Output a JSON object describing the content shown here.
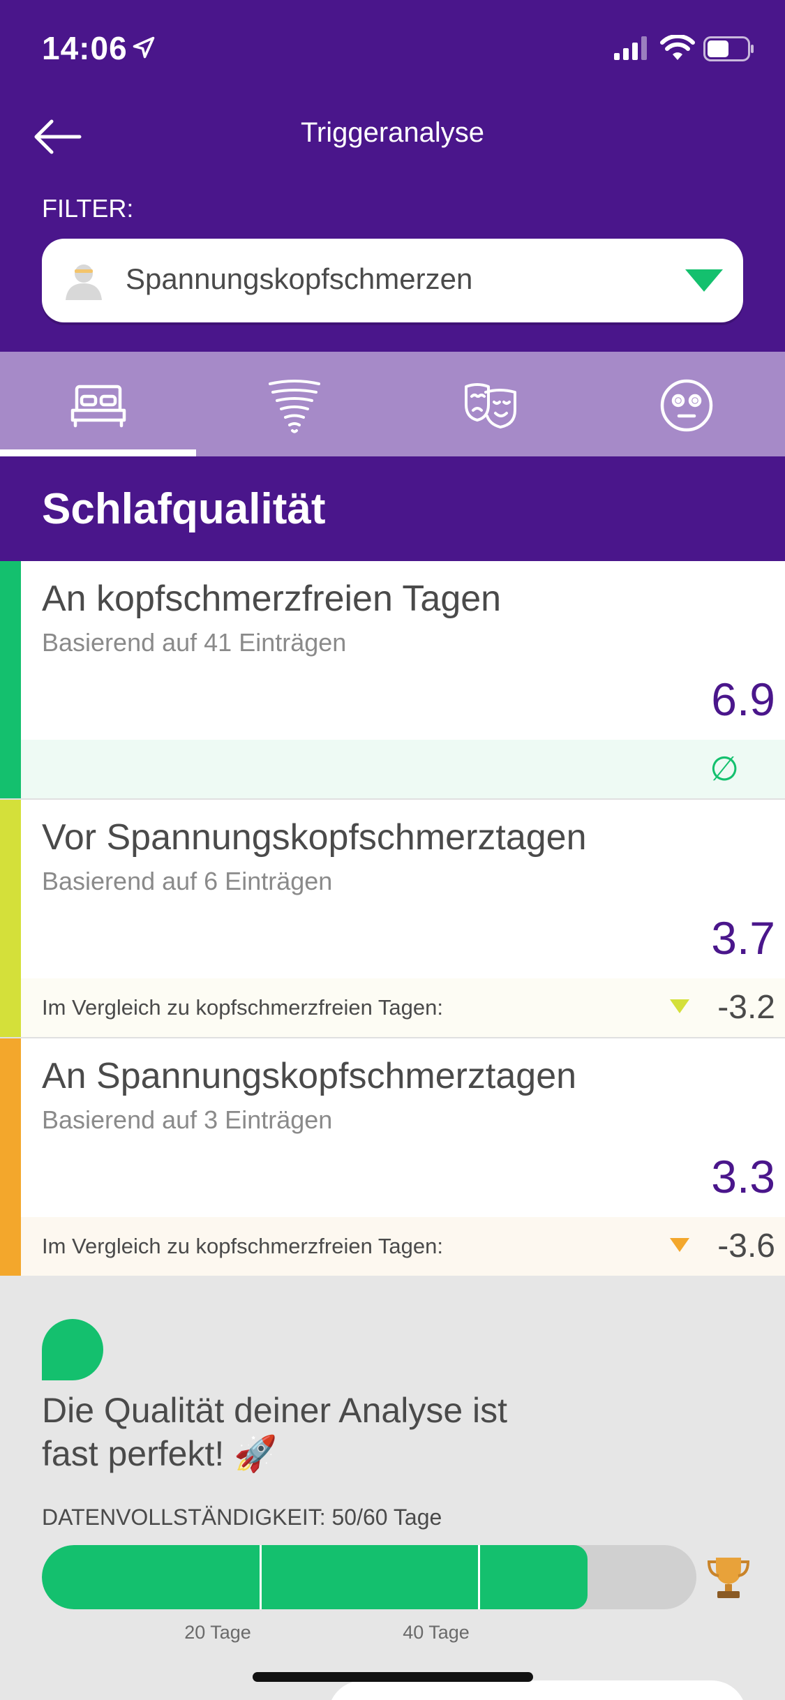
{
  "status_bar": {
    "time": "14:06"
  },
  "nav": {
    "title": "Triggeranalyse"
  },
  "filter": {
    "label": "FILTER:",
    "value": "Spannungskopfschmerzen",
    "accent_color": "#14c06e"
  },
  "tabs": [
    {
      "icon": "bed-icon",
      "selected": true
    },
    {
      "icon": "tornado-icon",
      "selected": false
    },
    {
      "icon": "theater-masks-icon",
      "selected": false
    },
    {
      "icon": "face-icon",
      "selected": false
    }
  ],
  "section": {
    "title": "Schlafqualität"
  },
  "cards": [
    {
      "title": "An kopfschmerzfreien Tagen",
      "subtitle": "Basierend auf 41 Einträgen",
      "value": "6.9",
      "footer_symbol": "∅",
      "color": "#14c06e"
    },
    {
      "title": "Vor Spannungskopfschmerztagen",
      "subtitle": "Basierend auf 6 Einträgen",
      "value": "3.7",
      "compare_label": "Im Vergleich zu kopfschmerzfreien Tagen:",
      "delta": "-3.2",
      "color": "#d4e03a"
    },
    {
      "title": "An Spannungskopfschmerztagen",
      "subtitle": "Basierend auf 3 Einträgen",
      "value": "3.3",
      "compare_label": "Im Vergleich zu kopfschmerzfreien Tagen:",
      "delta": "-3.6",
      "color": "#f3a72c"
    }
  ],
  "quality": {
    "message": "Die Qualität deiner Analyse ist fast perfekt! 🚀",
    "completeness_label": "DATENVOLLSTÄNDIGKEIT: 50/60 Tage",
    "progress_days": 50,
    "total_days": 60,
    "ticks": [
      "20 Tage",
      "40 Tage"
    ]
  },
  "colors": {
    "primary": "#4a168b",
    "tab_bar": "#a68ac8",
    "success": "#14c06e"
  }
}
